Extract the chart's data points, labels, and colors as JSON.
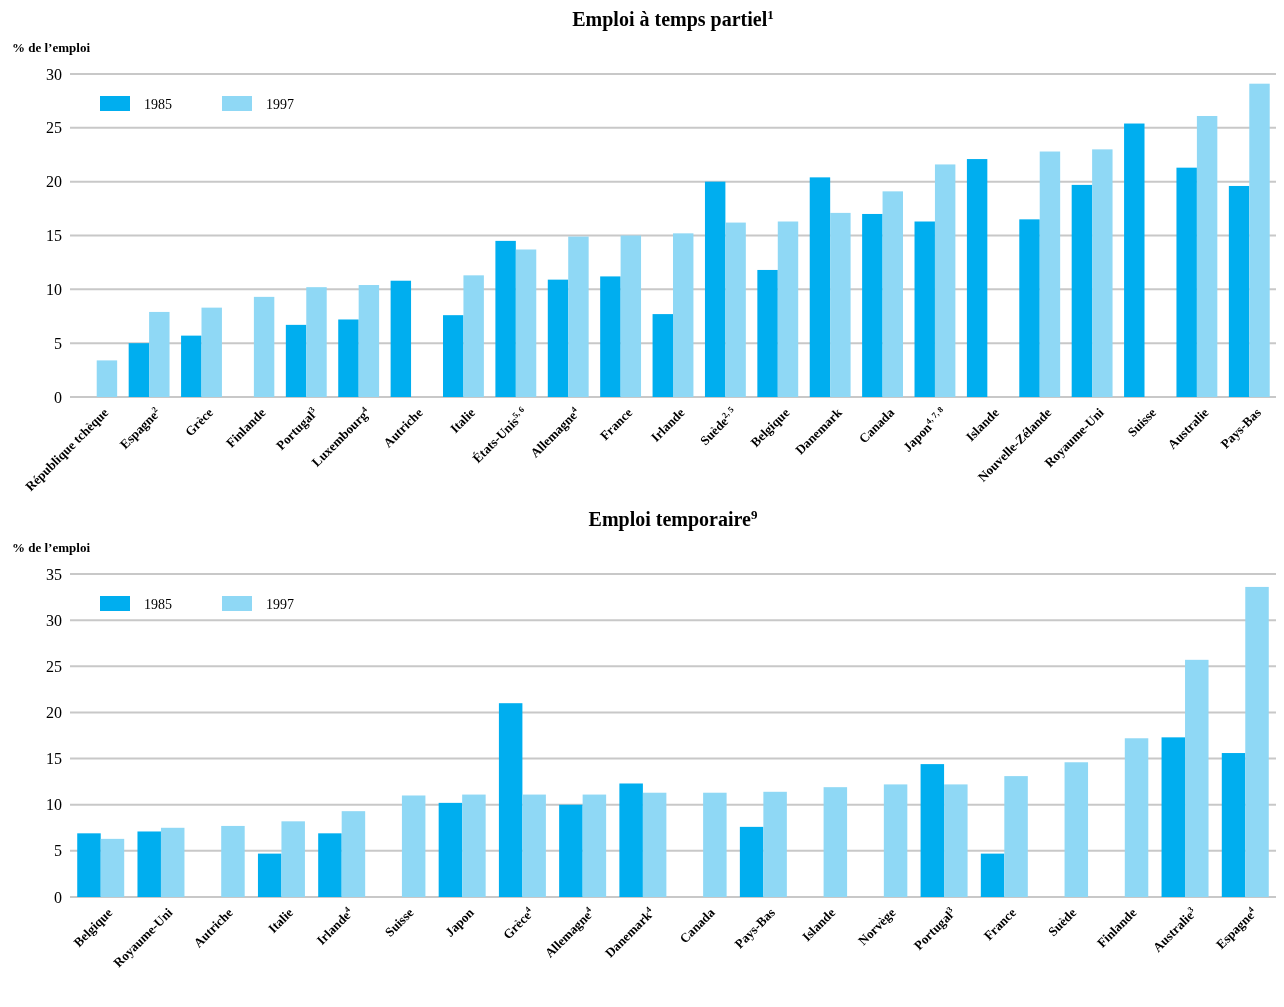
{
  "chart_data": [
    {
      "type": "bar",
      "title": "Emploi à temps partiel$^{1}$",
      "ylabel": "% de l’emploi",
      "categories": [
        "République tchèque",
        "Espagne$^{2}$",
        "Grèce",
        "Finlande",
        "Portugal$^{3}$",
        "Luxembourg$^{4}$",
        "Autriche",
        "Italie",
        "États-Unis$^{5, 6}$",
        "Allemagne$^{4}$",
        "France",
        "Irlande",
        "Suède$^{2, 5}$",
        "Belgique",
        "Danemark",
        "Canada",
        "Japon$^{4, 7, 8}$",
        "Islande",
        "Nouvelle-Zélande",
        "Royaume-Uni",
        "Suisse",
        "Australie",
        "Pays-Bas"
      ],
      "series": [
        {
          "name": "1985",
          "color": "#00aeef",
          "values": [
            null,
            5.0,
            5.7,
            null,
            6.7,
            7.2,
            10.8,
            7.6,
            14.5,
            10.9,
            11.2,
            7.7,
            20.0,
            11.8,
            20.4,
            17.0,
            16.3,
            22.1,
            16.5,
            19.7,
            25.4,
            21.3,
            19.6
          ]
        },
        {
          "name": "1997",
          "color": "#8fd8f5",
          "values": [
            3.4,
            7.9,
            8.3,
            9.3,
            10.2,
            10.4,
            null,
            11.3,
            13.7,
            14.9,
            15.0,
            15.2,
            16.2,
            16.3,
            17.1,
            19.1,
            21.6,
            null,
            22.8,
            23.0,
            null,
            26.1,
            29.1
          ]
        }
      ],
      "ylim": [
        0,
        30
      ],
      "yticks": [
        0,
        5,
        10,
        15,
        20,
        25,
        30
      ],
      "grid": "y",
      "legend": "top left"
    },
    {
      "type": "bar",
      "title": "Emploi temporaire$^{9}$",
      "ylabel": "% de l’emploi",
      "categories": [
        "Belgique",
        "Royaume-Uni",
        "Autriche",
        "Italie",
        "Irlande$^{4}$",
        "Suisse",
        "Japon",
        "Grèce$^{4}$",
        "Allemagne$^{4}$",
        "Danemark$^{4}$",
        "Canada",
        "Pays-Bas",
        "Islande",
        "Norvège",
        "Portugal$^{3}$",
        "France",
        "Suède",
        "Finlande",
        "Australie$^{3}$",
        "Espagne$^{4}$"
      ],
      "series": [
        {
          "name": "1985",
          "color": "#00aeef",
          "values": [
            6.9,
            7.1,
            null,
            4.7,
            6.9,
            null,
            10.2,
            21.0,
            10.0,
            12.3,
            null,
            7.6,
            null,
            null,
            14.4,
            4.7,
            null,
            null,
            17.3,
            15.6
          ]
        },
        {
          "name": "1997",
          "color": "#8fd8f5",
          "values": [
            6.3,
            7.5,
            7.7,
            8.2,
            9.3,
            11.0,
            11.1,
            11.1,
            11.1,
            11.3,
            11.3,
            11.4,
            11.9,
            12.2,
            12.2,
            13.1,
            14.6,
            17.2,
            25.7,
            33.6
          ]
        }
      ],
      "ylim": [
        0,
        35
      ],
      "yticks": [
        0,
        5,
        10,
        15,
        20,
        25,
        30,
        35
      ],
      "grid": "y",
      "legend": "top left"
    }
  ]
}
